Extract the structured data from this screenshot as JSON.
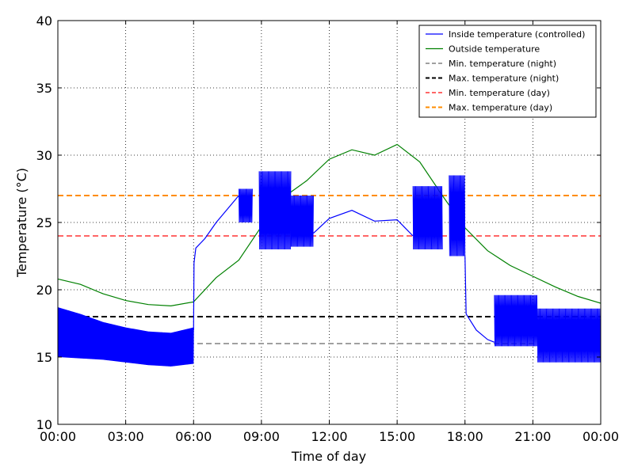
{
  "chart_data": {
    "type": "line",
    "title": "",
    "xlabel": "Time of day",
    "ylabel": "Temperature (°C)",
    "xlim_hours": [
      0,
      24
    ],
    "ylim": [
      10,
      40
    ],
    "grid": true,
    "legend_position": "top-right",
    "x_ticks": [
      {
        "hour": 0,
        "label": "00:00"
      },
      {
        "hour": 3,
        "label": "03:00"
      },
      {
        "hour": 6,
        "label": "06:00"
      },
      {
        "hour": 9,
        "label": "09:00"
      },
      {
        "hour": 12,
        "label": "12:00"
      },
      {
        "hour": 15,
        "label": "15:00"
      },
      {
        "hour": 18,
        "label": "18:00"
      },
      {
        "hour": 21,
        "label": "21:00"
      },
      {
        "hour": 24,
        "label": "00:00"
      }
    ],
    "y_ticks": [
      {
        "value": 10,
        "label": "10"
      },
      {
        "value": 15,
        "label": "15"
      },
      {
        "value": 20,
        "label": "20"
      },
      {
        "value": 25,
        "label": "25"
      },
      {
        "value": 30,
        "label": "30"
      },
      {
        "value": 35,
        "label": "35"
      },
      {
        "value": 40,
        "label": "40"
      }
    ],
    "series": [
      {
        "name": "Inside temperature (controlled)",
        "color": "#0000ff",
        "style": "solid",
        "envelope": [
          {
            "x": 0,
            "lo": 15.0,
            "hi": 18.7
          },
          {
            "x": 1,
            "lo": 14.9,
            "hi": 18.2
          },
          {
            "x": 2,
            "lo": 14.8,
            "hi": 17.6
          },
          {
            "x": 3,
            "lo": 14.6,
            "hi": 17.2
          },
          {
            "x": 4,
            "lo": 14.4,
            "hi": 16.9
          },
          {
            "x": 5,
            "lo": 14.3,
            "hi": 16.8
          },
          {
            "x": 6,
            "lo": 14.5,
            "hi": 17.2
          }
        ],
        "line": [
          {
            "x": 6.0,
            "y": 17.0
          },
          {
            "x": 6.02,
            "y": 22.0
          },
          {
            "x": 6.1,
            "y": 23.1
          },
          {
            "x": 6.5,
            "y": 23.8
          },
          {
            "x": 7.0,
            "y": 25.0
          },
          {
            "x": 7.5,
            "y": 26.0
          },
          {
            "x": 8.0,
            "y": 27.0
          }
        ],
        "band_segments": [
          {
            "x0": 8.0,
            "x1": 8.6,
            "lo": 25.0,
            "hi": 27.5
          },
          {
            "x0": 8.9,
            "x1": 10.3,
            "lo": 23.0,
            "hi": 28.8
          },
          {
            "x0": 10.3,
            "x1": 11.3,
            "lo": 23.2,
            "hi": 27.0
          },
          {
            "x0": 15.7,
            "x1": 17.0,
            "lo": 23.0,
            "hi": 27.7
          },
          {
            "x0": 17.3,
            "x1": 18.0,
            "lo": 22.5,
            "hi": 28.5
          },
          {
            "x0": 19.3,
            "x1": 21.2,
            "lo": 15.8,
            "hi": 19.6
          },
          {
            "x0": 21.2,
            "x1": 24.0,
            "lo": 14.6,
            "hi": 18.6
          }
        ],
        "line_mid": [
          {
            "x": 11.3,
            "y": 24.2
          },
          {
            "x": 12.0,
            "y": 25.3
          },
          {
            "x": 13.0,
            "y": 25.9
          },
          {
            "x": 14.0,
            "y": 25.1
          },
          {
            "x": 15.0,
            "y": 25.2
          },
          {
            "x": 15.7,
            "y": 24.0
          }
        ],
        "line_evening": [
          {
            "x": 18.0,
            "y": 22.5
          },
          {
            "x": 18.05,
            "y": 18.2
          },
          {
            "x": 18.5,
            "y": 17.0
          },
          {
            "x": 19.0,
            "y": 16.3
          },
          {
            "x": 19.3,
            "y": 16.1
          }
        ]
      },
      {
        "name": "Outside temperature",
        "color": "#008000",
        "style": "solid",
        "points": [
          {
            "x": 0,
            "y": 20.8
          },
          {
            "x": 1,
            "y": 20.4
          },
          {
            "x": 2,
            "y": 19.7
          },
          {
            "x": 3,
            "y": 19.2
          },
          {
            "x": 4,
            "y": 18.9
          },
          {
            "x": 5,
            "y": 18.8
          },
          {
            "x": 6,
            "y": 19.1
          },
          {
            "x": 7,
            "y": 20.9
          },
          {
            "x": 8,
            "y": 22.2
          },
          {
            "x": 9,
            "y": 24.7
          },
          {
            "x": 10,
            "y": 26.9
          },
          {
            "x": 11,
            "y": 28.1
          },
          {
            "x": 12,
            "y": 29.7
          },
          {
            "x": 13,
            "y": 30.4
          },
          {
            "x": 14,
            "y": 30.0
          },
          {
            "x": 15,
            "y": 30.8
          },
          {
            "x": 16,
            "y": 29.5
          },
          {
            "x": 17,
            "y": 27.0
          },
          {
            "x": 18,
            "y": 24.6
          },
          {
            "x": 19,
            "y": 22.9
          },
          {
            "x": 20,
            "y": 21.8
          },
          {
            "x": 21,
            "y": 21.0
          },
          {
            "x": 22,
            "y": 20.2
          },
          {
            "x": 23,
            "y": 19.5
          },
          {
            "x": 24,
            "y": 19.0
          }
        ]
      },
      {
        "name": "Min. temperature (night)",
        "color": "#a0a0a0",
        "style": "dashed",
        "value": 16
      },
      {
        "name": "Max. temperature (night)",
        "color": "#000000",
        "style": "dashed",
        "value": 18
      },
      {
        "name": "Min. temperature (day)",
        "color": "#ff6666",
        "style": "dashed",
        "value": 24
      },
      {
        "name": "Max. temperature (day)",
        "color": "#ff8c00",
        "style": "dashed",
        "value": 27
      }
    ]
  }
}
